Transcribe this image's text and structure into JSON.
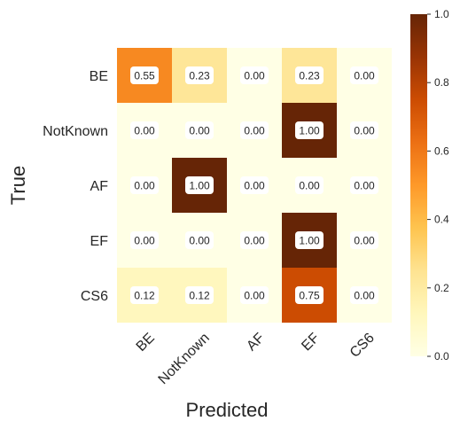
{
  "chart_data": {
    "type": "heatmap",
    "title": "",
    "xlabel": "Predicted",
    "ylabel": "True",
    "x_categories": [
      "BE",
      "NotKnown",
      "AF",
      "EF",
      "CS6"
    ],
    "y_categories": [
      "BE",
      "NotKnown",
      "AF",
      "EF",
      "CS6"
    ],
    "values": [
      [
        0.55,
        0.23,
        0.0,
        0.23,
        0.0
      ],
      [
        0.0,
        0.0,
        0.0,
        1.0,
        0.0
      ],
      [
        0.0,
        1.0,
        0.0,
        0.0,
        0.0
      ],
      [
        0.0,
        0.0,
        0.0,
        1.0,
        0.0
      ],
      [
        0.12,
        0.12,
        0.0,
        0.75,
        0.0
      ]
    ],
    "value_format": "0.00",
    "colormap": "YlOrBr",
    "colorbar": {
      "range": [
        0.0,
        1.0
      ],
      "ticks": [
        "0.0",
        "0.2",
        "0.4",
        "0.6",
        "0.8",
        "1.0"
      ]
    },
    "annotation_box_color": "#ffffff"
  }
}
